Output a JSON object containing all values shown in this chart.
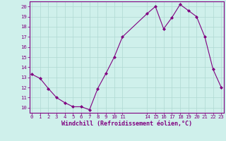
{
  "x": [
    0,
    1,
    2,
    3,
    4,
    5,
    6,
    7,
    8,
    9,
    10,
    11,
    14,
    15,
    16,
    17,
    18,
    19,
    20,
    21,
    22,
    23
  ],
  "y": [
    13.3,
    12.9,
    11.9,
    11.0,
    10.5,
    10.1,
    10.1,
    9.8,
    11.9,
    13.4,
    15.0,
    17.0,
    19.3,
    20.0,
    17.8,
    18.9,
    20.2,
    19.6,
    19.0,
    17.0,
    13.8,
    12.0
  ],
  "line_color": "#800080",
  "marker": "D",
  "marker_size": 2,
  "bg_color": "#cff0eb",
  "grid_color": "#aed8d2",
  "xlabel": "Windchill (Refroidissement éolien,°C)",
  "xlabel_color": "#800080",
  "tick_color": "#800080",
  "spine_color": "#800080",
  "ylim": [
    9.5,
    20.5
  ],
  "yticks": [
    10,
    11,
    12,
    13,
    14,
    15,
    16,
    17,
    18,
    19,
    20
  ],
  "xticks": [
    0,
    1,
    2,
    3,
    4,
    5,
    6,
    7,
    8,
    9,
    10,
    11,
    14,
    15,
    16,
    17,
    18,
    19,
    20,
    21,
    22,
    23
  ],
  "xlim": [
    -0.3,
    23.3
  ],
  "font_name": "monospace",
  "tick_fontsize": 5.2,
  "xlabel_fontsize": 6.0
}
